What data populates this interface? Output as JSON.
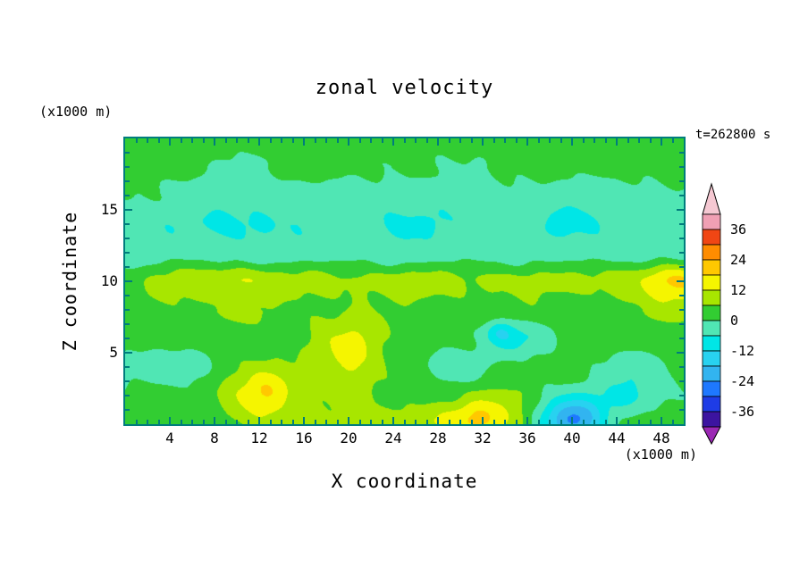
{
  "figure": {
    "title": "zonal velocity",
    "time_label": "t=262800 s",
    "frame_color": "#007d7d",
    "background_color": "#ffffff"
  },
  "x_axis": {
    "label": "X coordinate",
    "unit_label": "(x1000 m)",
    "ticks": [
      4,
      8,
      12,
      16,
      20,
      24,
      28,
      32,
      36,
      40,
      44,
      48
    ]
  },
  "z_axis": {
    "label": "Z coordinate",
    "unit_label": "(x1000 m)",
    "ticks": [
      5,
      10,
      15
    ]
  },
  "colorbar": {
    "labels": [
      36,
      24,
      12,
      0,
      -12,
      -24,
      -36
    ],
    "band_min": -42,
    "band_max": 42,
    "band_step": 6,
    "colors_low_to_high": [
      "#3c14a0",
      "#1e3ce6",
      "#1e78ff",
      "#32b4f0",
      "#28d2f0",
      "#00e6e6",
      "#50e6b4",
      "#32cd32",
      "#a8e600",
      "#f5f500",
      "#ffc800",
      "#ff8c00",
      "#f04614",
      "#f0a0b4"
    ],
    "arrow_top_color": "#f5c8d2",
    "arrow_bottom_color": "#9b28b4",
    "outline_color": "#000000"
  },
  "chart_data": {
    "type": "filled_contour",
    "title": "zonal velocity",
    "xlabel": "X coordinate (x1000 m)",
    "ylabel": "Z coordinate (x1000 m)",
    "time": "t=262800 s",
    "x_range": [
      0,
      50
    ],
    "z_range": [
      0,
      20
    ],
    "contour_interval": 6,
    "levels": [
      -42,
      -36,
      -30,
      -24,
      -18,
      -12,
      -6,
      0,
      6,
      12,
      18,
      24,
      30,
      36,
      42
    ],
    "grid_x": [
      0,
      5,
      10,
      15,
      20,
      25,
      30,
      35,
      40,
      45,
      50
    ],
    "grid_z": [
      20,
      18,
      16,
      14,
      12,
      10,
      8,
      6,
      4,
      2,
      0
    ],
    "values": [
      [
        2,
        2,
        3,
        2,
        2,
        3,
        2,
        2,
        2,
        3,
        2
      ],
      [
        2,
        1,
        -1,
        2,
        2,
        1,
        -1,
        2,
        1,
        2,
        2
      ],
      [
        0,
        -2,
        -4,
        -3,
        -2,
        -4,
        -3,
        -2,
        -3,
        -2,
        -1
      ],
      [
        -3,
        -5,
        -8,
        -5,
        -4,
        -7,
        -5,
        -4,
        -8,
        -4,
        -3
      ],
      [
        -4,
        -2,
        -4,
        -3,
        -2,
        -4,
        -2,
        -3,
        -2,
        -3,
        -5
      ],
      [
        4,
        9,
        13,
        8,
        7,
        9,
        7,
        8,
        7,
        10,
        14
      ],
      [
        3,
        5,
        8,
        4,
        5,
        4,
        5,
        4,
        3,
        5,
        7
      ],
      [
        2,
        3,
        2,
        4,
        8,
        2,
        2,
        -8,
        3,
        4,
        2
      ],
      [
        -1,
        -5,
        3,
        4,
        7,
        3,
        -6,
        2,
        3,
        -5,
        2
      ],
      [
        2,
        1,
        6,
        3,
        8,
        3,
        -4,
        3,
        2,
        -6,
        0
      ],
      [
        3,
        2,
        5,
        6,
        8,
        8,
        6,
        3,
        -6,
        2,
        3
      ]
    ],
    "anomalies": [
      {
        "x": 12.5,
        "z": 2.3,
        "amp": 14,
        "sx": 2.0,
        "sz": 1.3
      },
      {
        "x": 31.5,
        "z": 0.8,
        "amp": 16,
        "sx": 2.6,
        "sz": 1.4
      },
      {
        "x": 40.0,
        "z": 0.6,
        "amp": -20,
        "sx": 2.0,
        "sz": 1.2
      },
      {
        "x": 20.0,
        "z": 5.0,
        "amp": 6,
        "sx": 2.6,
        "sz": 1.8
      },
      {
        "x": 33.5,
        "z": 6.5,
        "amp": -9,
        "sx": 0.9,
        "sz": 0.6
      },
      {
        "x": 49.0,
        "z": 10.0,
        "amp": 5,
        "sx": 2.0,
        "sz": 1.5
      }
    ]
  }
}
